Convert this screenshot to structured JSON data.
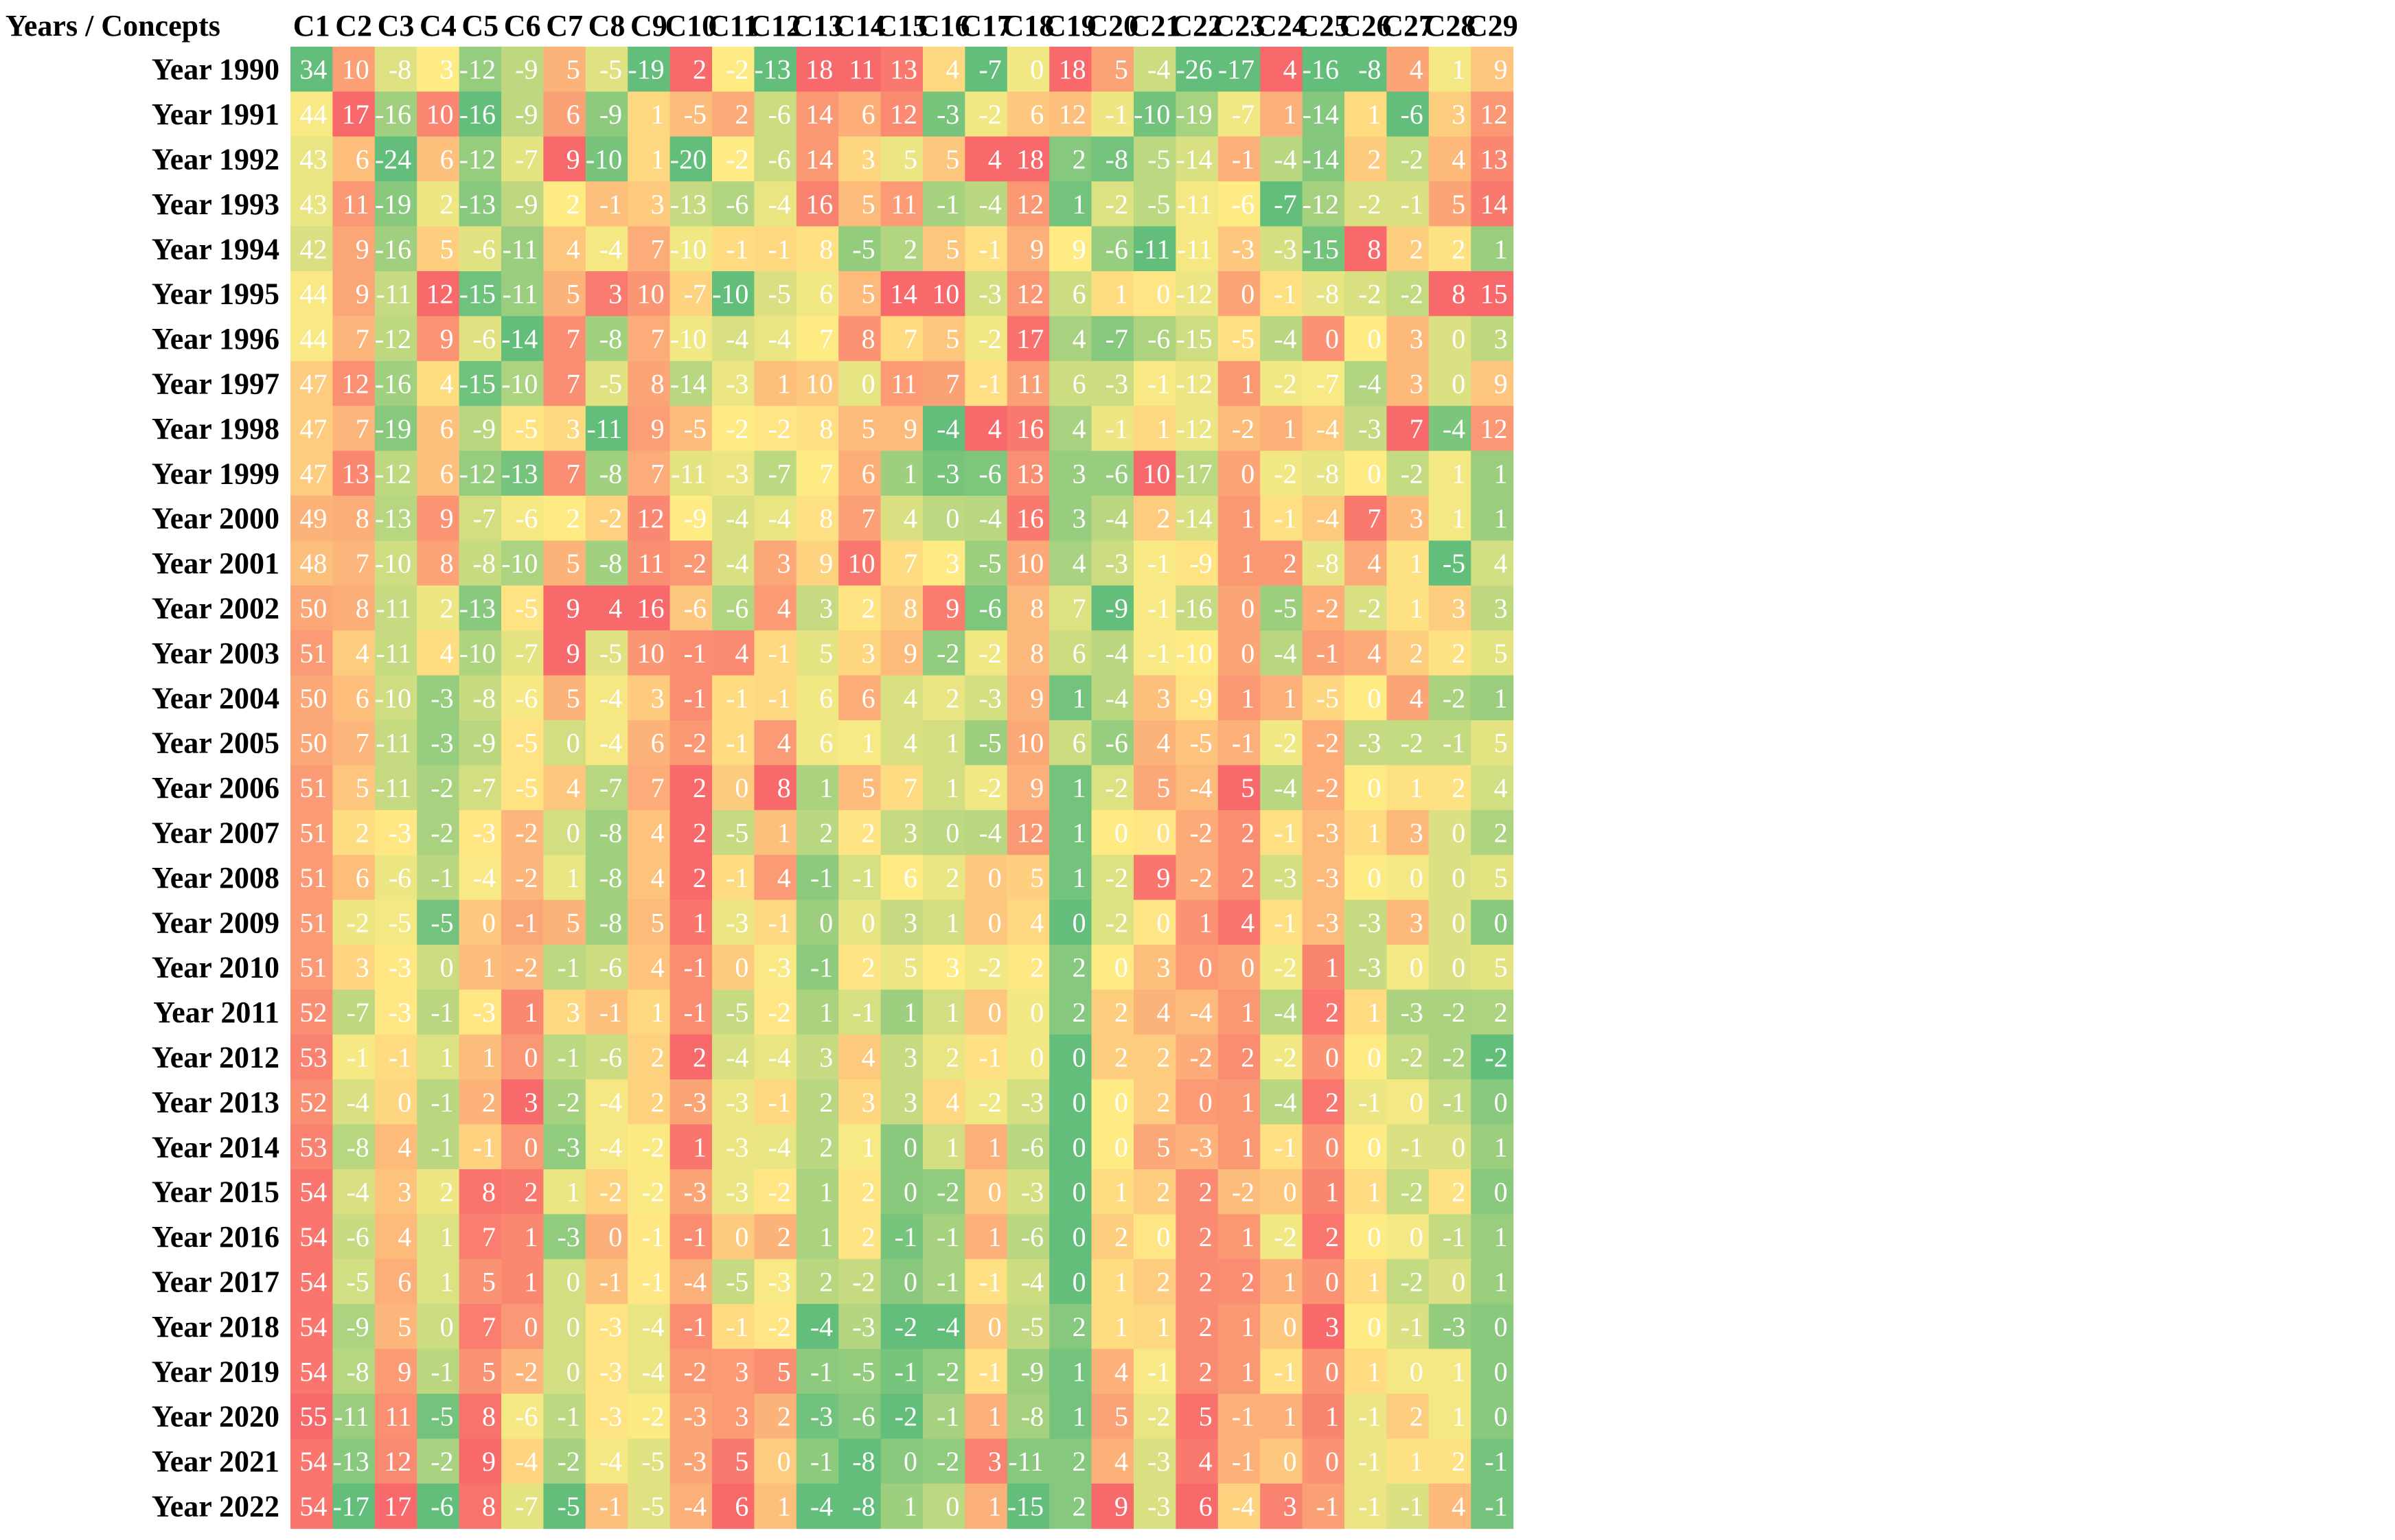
{
  "chart_data": {
    "type": "heatmap",
    "title": "",
    "corner_label": "Years / Concepts",
    "columns": [
      "C1",
      "C2",
      "C3",
      "C4",
      "C5",
      "C6",
      "C7",
      "C8",
      "C9",
      "C10",
      "C11",
      "C12",
      "C13",
      "C14",
      "C15",
      "C16",
      "C17",
      "C18",
      "C19",
      "C20",
      "C21",
      "C22",
      "C23",
      "C24",
      "C25",
      "C26",
      "C27",
      "C28",
      "C29"
    ],
    "rows": [
      "Year 1990",
      "Year 1991",
      "Year 1992",
      "Year 1993",
      "Year 1994",
      "Year 1995",
      "Year 1996",
      "Year 1997",
      "Year 1998",
      "Year 1999",
      "Year 2000",
      "Year 2001",
      "Year 2002",
      "Year 2003",
      "Year 2004",
      "Year 2005",
      "Year 2006",
      "Year 2007",
      "Year 2008",
      "Year 2009",
      "Year 2010",
      "Year 2011",
      "Year 2012",
      "Year 2013",
      "Year 2014",
      "Year 2015",
      "Year 2016",
      "Year 2017",
      "Year 2018",
      "Year 2019",
      "Year 2020",
      "Year 2021",
      "Year 2022"
    ],
    "values": [
      [
        34,
        10,
        -8,
        3,
        -12,
        -9,
        5,
        -5,
        -19,
        2,
        -2,
        -13,
        18,
        11,
        13,
        4,
        -7,
        0,
        18,
        5,
        -4,
        -26,
        -17,
        4,
        -16,
        -8,
        4,
        1,
        9
      ],
      [
        44,
        17,
        -16,
        10,
        -16,
        -9,
        6,
        -9,
        1,
        -5,
        2,
        -6,
        14,
        6,
        12,
        -3,
        -2,
        6,
        12,
        -1,
        -10,
        -19,
        -7,
        1,
        -14,
        1,
        -6,
        3,
        12
      ],
      [
        43,
        6,
        -24,
        6,
        -12,
        -7,
        9,
        -10,
        1,
        -20,
        -2,
        -6,
        14,
        3,
        5,
        5,
        4,
        18,
        2,
        -8,
        -5,
        -14,
        -1,
        -4,
        -14,
        2,
        -2,
        4,
        13
      ],
      [
        43,
        11,
        -19,
        2,
        -13,
        -9,
        2,
        -1,
        3,
        -13,
        -6,
        -4,
        16,
        5,
        11,
        -1,
        -4,
        12,
        1,
        -2,
        -5,
        -11,
        -6,
        -7,
        -12,
        -2,
        -1,
        5,
        14
      ],
      [
        42,
        9,
        -16,
        5,
        -6,
        -11,
        4,
        -4,
        7,
        -10,
        -1,
        -1,
        8,
        -5,
        2,
        5,
        -1,
        9,
        9,
        -6,
        -11,
        -11,
        -3,
        -3,
        -15,
        8,
        2,
        2,
        1
      ],
      [
        44,
        9,
        -11,
        12,
        -15,
        -11,
        5,
        3,
        10,
        -7,
        -10,
        -5,
        6,
        5,
        14,
        10,
        -3,
        12,
        6,
        1,
        0,
        -12,
        0,
        -1,
        -8,
        -2,
        -2,
        8,
        15
      ],
      [
        44,
        7,
        -12,
        9,
        -6,
        -14,
        7,
        -8,
        7,
        -10,
        -4,
        -4,
        7,
        8,
        7,
        5,
        -2,
        17,
        4,
        -7,
        -6,
        -15,
        -5,
        -4,
        0,
        0,
        3,
        0,
        3
      ],
      [
        47,
        12,
        -16,
        4,
        -15,
        -10,
        7,
        -5,
        8,
        -14,
        -3,
        1,
        10,
        0,
        11,
        7,
        -1,
        11,
        6,
        -3,
        -1,
        -12,
        1,
        -2,
        -7,
        -4,
        3,
        0,
        9
      ],
      [
        47,
        7,
        -19,
        6,
        -9,
        -5,
        3,
        -11,
        9,
        -5,
        -2,
        -2,
        8,
        5,
        9,
        -4,
        4,
        16,
        4,
        -1,
        1,
        -12,
        -2,
        1,
        -4,
        -3,
        7,
        -4,
        12
      ],
      [
        47,
        13,
        -12,
        6,
        -12,
        -13,
        7,
        -8,
        7,
        -11,
        -3,
        -7,
        7,
        6,
        1,
        -3,
        -6,
        13,
        3,
        -6,
        10,
        -17,
        0,
        -2,
        -8,
        0,
        -2,
        1,
        1
      ],
      [
        49,
        8,
        -13,
        9,
        -7,
        -6,
        2,
        -2,
        12,
        -9,
        -4,
        -4,
        8,
        7,
        4,
        0,
        -4,
        16,
        3,
        -4,
        2,
        -14,
        1,
        -1,
        -4,
        7,
        3,
        1,
        1
      ],
      [
        48,
        7,
        -10,
        8,
        -8,
        -10,
        5,
        -8,
        11,
        -2,
        -4,
        3,
        9,
        10,
        7,
        3,
        -5,
        10,
        4,
        -3,
        -1,
        -9,
        1,
        2,
        -8,
        4,
        1,
        -5,
        4
      ],
      [
        50,
        8,
        -11,
        2,
        -13,
        -5,
        9,
        4,
        16,
        -6,
        -6,
        4,
        3,
        2,
        8,
        9,
        -6,
        8,
        7,
        -9,
        -1,
        -16,
        0,
        -5,
        -2,
        -2,
        1,
        3,
        3
      ],
      [
        51,
        4,
        -11,
        4,
        -10,
        -7,
        9,
        -5,
        10,
        -1,
        4,
        -1,
        5,
        3,
        9,
        -2,
        -2,
        8,
        6,
        -4,
        -1,
        -10,
        0,
        -4,
        -1,
        4,
        2,
        2,
        5
      ],
      [
        50,
        6,
        -10,
        -3,
        -8,
        -6,
        5,
        -4,
        3,
        -1,
        -1,
        -1,
        6,
        6,
        4,
        2,
        -3,
        9,
        1,
        -4,
        3,
        -9,
        1,
        1,
        -5,
        0,
        4,
        -2,
        1
      ],
      [
        50,
        7,
        -11,
        -3,
        -9,
        -5,
        0,
        -4,
        6,
        -2,
        -1,
        4,
        6,
        1,
        4,
        1,
        -5,
        10,
        6,
        -6,
        4,
        -5,
        -1,
        -2,
        -2,
        -3,
        -2,
        -1,
        5
      ],
      [
        51,
        5,
        -11,
        -2,
        -7,
        -5,
        4,
        -7,
        7,
        2,
        0,
        8,
        1,
        5,
        7,
        1,
        -2,
        9,
        1,
        -2,
        5,
        -4,
        5,
        -4,
        -2,
        0,
        1,
        2,
        4
      ],
      [
        51,
        2,
        -3,
        -2,
        -3,
        -2,
        0,
        -8,
        4,
        2,
        -5,
        1,
        2,
        2,
        3,
        0,
        -4,
        12,
        1,
        0,
        0,
        -2,
        2,
        -1,
        -3,
        1,
        3,
        0,
        2
      ],
      [
        51,
        6,
        -6,
        -1,
        -4,
        -2,
        1,
        -8,
        4,
        2,
        -1,
        4,
        -1,
        -1,
        6,
        2,
        0,
        5,
        1,
        -2,
        9,
        -2,
        2,
        -3,
        -3,
        0,
        0,
        0,
        5
      ],
      [
        51,
        -2,
        -5,
        -5,
        0,
        -1,
        5,
        -8,
        5,
        1,
        -3,
        -1,
        0,
        0,
        3,
        1,
        0,
        4,
        0,
        -2,
        0,
        1,
        4,
        -1,
        -3,
        -3,
        3,
        0,
        0
      ],
      [
        51,
        3,
        -3,
        0,
        1,
        -2,
        -1,
        -6,
        4,
        -1,
        0,
        -3,
        -1,
        2,
        5,
        3,
        -2,
        2,
        2,
        0,
        3,
        0,
        0,
        -2,
        1,
        -3,
        0,
        0,
        5
      ],
      [
        52,
        -7,
        -3,
        -1,
        -3,
        1,
        3,
        -1,
        1,
        -1,
        -5,
        -2,
        1,
        -1,
        1,
        1,
        0,
        0,
        2,
        2,
        4,
        -4,
        1,
        -4,
        2,
        1,
        -3,
        -2,
        2
      ],
      [
        53,
        -1,
        -1,
        1,
        1,
        0,
        -1,
        -6,
        2,
        2,
        -4,
        -4,
        3,
        4,
        3,
        2,
        -1,
        0,
        0,
        2,
        2,
        -2,
        2,
        -2,
        0,
        0,
        -2,
        -2,
        -2
      ],
      [
        52,
        -4,
        0,
        -1,
        2,
        3,
        -2,
        -4,
        2,
        -3,
        -3,
        -1,
        2,
        3,
        3,
        4,
        -2,
        -3,
        0,
        0,
        2,
        0,
        1,
        -4,
        2,
        -1,
        0,
        -1,
        0
      ],
      [
        53,
        -8,
        4,
        -1,
        -1,
        0,
        -3,
        -4,
        -2,
        1,
        -3,
        -4,
        2,
        1,
        0,
        1,
        1,
        -6,
        0,
        0,
        5,
        -3,
        1,
        -1,
        0,
        0,
        -1,
        0,
        1
      ],
      [
        54,
        -4,
        3,
        2,
        8,
        2,
        1,
        -2,
        -2,
        -3,
        -3,
        -2,
        1,
        2,
        0,
        -2,
        0,
        -3,
        0,
        1,
        2,
        2,
        -2,
        0,
        1,
        1,
        -2,
        2,
        0
      ],
      [
        54,
        -6,
        4,
        1,
        7,
        1,
        -3,
        0,
        -1,
        -1,
        0,
        2,
        1,
        2,
        -1,
        -1,
        1,
        -6,
        0,
        2,
        0,
        2,
        1,
        -2,
        2,
        0,
        0,
        -1,
        1
      ],
      [
        54,
        -5,
        6,
        1,
        5,
        1,
        0,
        -1,
        -1,
        -4,
        -5,
        -3,
        2,
        -2,
        0,
        -1,
        -1,
        -4,
        0,
        1,
        2,
        2,
        2,
        1,
        0,
        1,
        -2,
        0,
        1
      ],
      [
        54,
        -9,
        5,
        0,
        7,
        0,
        0,
        -3,
        -4,
        -1,
        -1,
        -2,
        -4,
        -3,
        -2,
        -4,
        0,
        -5,
        2,
        1,
        1,
        2,
        1,
        0,
        3,
        0,
        -1,
        -3,
        0
      ],
      [
        54,
        -8,
        9,
        -1,
        5,
        -2,
        0,
        -3,
        -4,
        -2,
        3,
        5,
        -1,
        -5,
        -1,
        -2,
        -1,
        -9,
        1,
        4,
        -1,
        2,
        1,
        -1,
        0,
        1,
        0,
        1,
        0
      ],
      [
        55,
        -11,
        11,
        -5,
        8,
        -6,
        -1,
        -3,
        -2,
        -3,
        3,
        2,
        -3,
        -6,
        -2,
        -1,
        1,
        -8,
        1,
        5,
        -2,
        5,
        -1,
        1,
        1,
        -1,
        2,
        1,
        0
      ],
      [
        54,
        -13,
        12,
        -2,
        9,
        -4,
        -2,
        -4,
        -5,
        -3,
        5,
        0,
        -1,
        -8,
        0,
        -2,
        3,
        -11,
        2,
        4,
        -3,
        4,
        -1,
        0,
        0,
        -1,
        1,
        2,
        -1
      ],
      [
        54,
        -17,
        17,
        -6,
        8,
        -7,
        -5,
        -1,
        -5,
        -4,
        6,
        1,
        -4,
        -8,
        1,
        0,
        1,
        -15,
        2,
        9,
        -3,
        6,
        -4,
        3,
        -1,
        -1,
        -1,
        4,
        -1
      ]
    ],
    "colors": {
      "low": "#63be7b",
      "mid": "#ffeb84",
      "high": "#f8696b"
    },
    "legend": "none",
    "grid": false
  }
}
